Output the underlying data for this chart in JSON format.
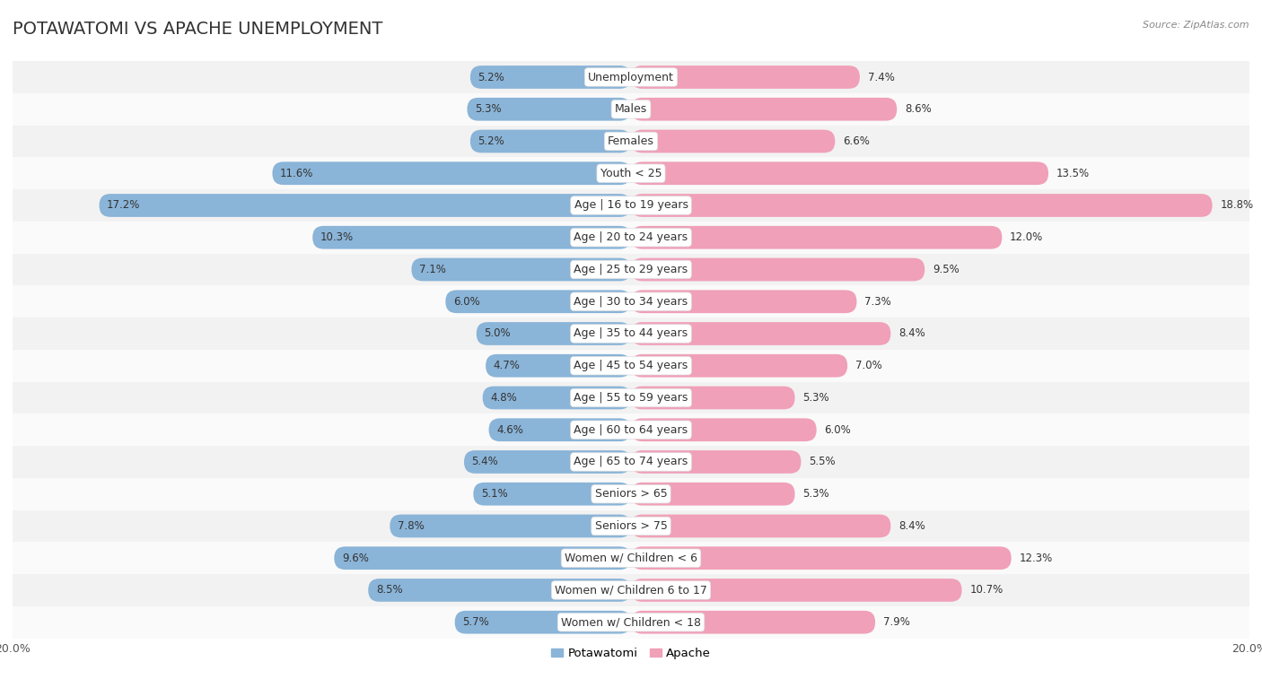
{
  "title": "POTAWATOMI VS APACHE UNEMPLOYMENT",
  "source": "Source: ZipAtlas.com",
  "categories": [
    "Unemployment",
    "Males",
    "Females",
    "Youth < 25",
    "Age | 16 to 19 years",
    "Age | 20 to 24 years",
    "Age | 25 to 29 years",
    "Age | 30 to 34 years",
    "Age | 35 to 44 years",
    "Age | 45 to 54 years",
    "Age | 55 to 59 years",
    "Age | 60 to 64 years",
    "Age | 65 to 74 years",
    "Seniors > 65",
    "Seniors > 75",
    "Women w/ Children < 6",
    "Women w/ Children 6 to 17",
    "Women w/ Children < 18"
  ],
  "potawatomi": [
    5.2,
    5.3,
    5.2,
    11.6,
    17.2,
    10.3,
    7.1,
    6.0,
    5.0,
    4.7,
    4.8,
    4.6,
    5.4,
    5.1,
    7.8,
    9.6,
    8.5,
    5.7
  ],
  "apache": [
    7.4,
    8.6,
    6.6,
    13.5,
    18.8,
    12.0,
    9.5,
    7.3,
    8.4,
    7.0,
    5.3,
    6.0,
    5.5,
    5.3,
    8.4,
    12.3,
    10.7,
    7.9
  ],
  "potawatomi_color": "#8ab4d8",
  "apache_color": "#f0a0b8",
  "potawatomi_label": "Potawatomi",
  "apache_label": "Apache",
  "axis_max": 20.0,
  "bg_color": "#ffffff",
  "row_bg_odd": "#f2f2f2",
  "row_bg_even": "#fafafa",
  "title_fontsize": 14,
  "label_fontsize": 9,
  "value_fontsize": 8.5,
  "legend_fontsize": 9.5,
  "axis_label_fontsize": 9
}
